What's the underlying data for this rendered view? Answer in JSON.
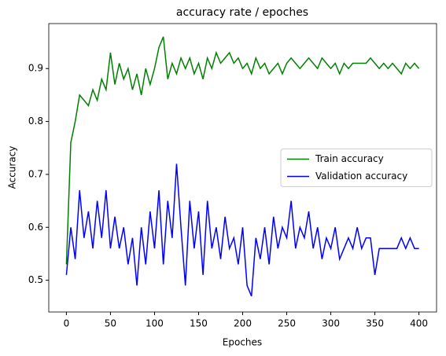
{
  "chart_data": {
    "type": "line",
    "title": "accuracy rate / epoches",
    "xlabel": "Epoches",
    "ylabel": "Accuracy",
    "x": [
      0,
      5,
      10,
      15,
      20,
      25,
      30,
      35,
      40,
      45,
      50,
      55,
      60,
      65,
      70,
      75,
      80,
      85,
      90,
      95,
      100,
      105,
      110,
      115,
      120,
      125,
      130,
      135,
      140,
      145,
      150,
      155,
      160,
      165,
      170,
      175,
      180,
      185,
      190,
      195,
      200,
      205,
      210,
      215,
      220,
      225,
      230,
      235,
      240,
      245,
      250,
      255,
      260,
      265,
      270,
      275,
      280,
      285,
      290,
      295,
      300,
      305,
      310,
      315,
      320,
      325,
      330,
      335,
      340,
      345,
      350,
      355,
      360,
      365,
      370,
      375,
      380,
      385,
      390,
      395,
      400
    ],
    "series": [
      {
        "name": "Train accuracy",
        "color": "#008000",
        "values": [
          0.53,
          0.76,
          0.8,
          0.85,
          0.84,
          0.83,
          0.86,
          0.84,
          0.88,
          0.86,
          0.93,
          0.87,
          0.91,
          0.88,
          0.9,
          0.86,
          0.89,
          0.85,
          0.9,
          0.87,
          0.9,
          0.94,
          0.96,
          0.88,
          0.91,
          0.89,
          0.92,
          0.9,
          0.92,
          0.89,
          0.91,
          0.88,
          0.92,
          0.9,
          0.93,
          0.91,
          0.92,
          0.93,
          0.91,
          0.92,
          0.9,
          0.91,
          0.89,
          0.92,
          0.9,
          0.91,
          0.89,
          0.9,
          0.91,
          0.89,
          0.91,
          0.92,
          0.91,
          0.9,
          0.91,
          0.92,
          0.91,
          0.9,
          0.92,
          0.91,
          0.9,
          0.91,
          0.89,
          0.91,
          0.9,
          0.91,
          0.91,
          0.91,
          0.91,
          0.92,
          0.91,
          0.9,
          0.91,
          0.9,
          0.91,
          0.9,
          0.89,
          0.91,
          0.9,
          0.91,
          0.9
        ]
      },
      {
        "name": "Validation accuracy",
        "color": "#0000ff",
        "values": [
          0.51,
          0.6,
          0.54,
          0.67,
          0.58,
          0.63,
          0.56,
          0.65,
          0.58,
          0.67,
          0.56,
          0.62,
          0.56,
          0.6,
          0.53,
          0.58,
          0.49,
          0.6,
          0.53,
          0.63,
          0.56,
          0.67,
          0.53,
          0.65,
          0.58,
          0.72,
          0.6,
          0.49,
          0.65,
          0.56,
          0.63,
          0.51,
          0.65,
          0.56,
          0.6,
          0.54,
          0.62,
          0.56,
          0.58,
          0.53,
          0.6,
          0.49,
          0.47,
          0.58,
          0.54,
          0.6,
          0.53,
          0.62,
          0.56,
          0.6,
          0.58,
          0.65,
          0.56,
          0.6,
          0.58,
          0.63,
          0.56,
          0.6,
          0.54,
          0.58,
          0.56,
          0.6,
          0.54,
          0.56,
          0.58,
          0.56,
          0.6,
          0.56,
          0.58,
          0.58,
          0.51,
          0.56,
          0.56,
          0.56,
          0.56,
          0.56,
          0.58,
          0.56,
          0.58,
          0.56,
          0.56
        ]
      }
    ],
    "xlim": [
      -20,
      420
    ],
    "ylim": [
      0.44,
      0.985
    ],
    "xticks": [
      0,
      50,
      100,
      150,
      200,
      250,
      300,
      350,
      400
    ],
    "yticks": [
      0.5,
      0.6,
      0.7,
      0.8,
      0.9
    ],
    "legend": "center right"
  }
}
